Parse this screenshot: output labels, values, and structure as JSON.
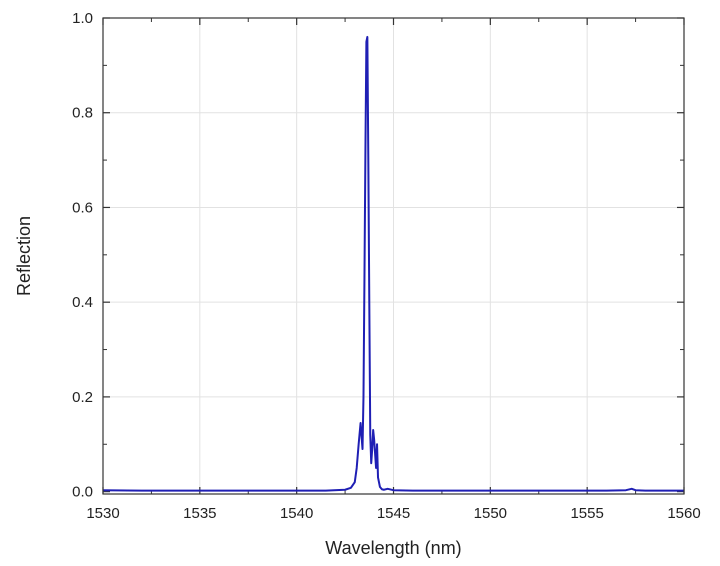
{
  "chart_data": {
    "type": "line",
    "title": "",
    "xlabel": "Wavelength (nm)",
    "ylabel": "Reflection",
    "xlim": [
      1530,
      1560
    ],
    "ylim": [
      -0.005,
      1.0
    ],
    "xticks": [
      1530,
      1535,
      1540,
      1545,
      1550,
      1555,
      1560
    ],
    "xtick_labels": [
      "1530",
      "1535",
      "1540",
      "1545",
      "1550",
      "1555",
      "1560"
    ],
    "yticks": [
      0.0,
      0.2,
      0.4,
      0.6,
      0.8,
      1.0
    ],
    "ytick_labels": [
      "0.0",
      "0.2",
      "0.4",
      "0.6",
      "0.8",
      "1.0"
    ],
    "grid": true,
    "legend": "none",
    "line_color": "#1f1fb4",
    "series": [
      {
        "values_x": [
          1530.0,
          1532.0,
          1534.0,
          1536.0,
          1538.0,
          1540.0,
          1541.5,
          1542.5,
          1542.8,
          1543.0,
          1543.1,
          1543.2,
          1543.3,
          1543.4,
          1543.45,
          1543.5,
          1543.55,
          1543.6,
          1543.65,
          1543.7,
          1543.75,
          1543.8,
          1543.85,
          1543.9,
          1543.95,
          1544.0,
          1544.05,
          1544.1,
          1544.15,
          1544.2,
          1544.3,
          1544.4,
          1544.5,
          1544.7,
          1545.0,
          1546.0,
          1548.0,
          1550.0,
          1552.0,
          1554.0,
          1556.0,
          1557.0,
          1557.3,
          1557.5,
          1558.0,
          1560.0
        ],
        "values_y": [
          0.003,
          0.002,
          0.002,
          0.002,
          0.002,
          0.002,
          0.002,
          0.004,
          0.008,
          0.02,
          0.05,
          0.1,
          0.145,
          0.09,
          0.2,
          0.45,
          0.72,
          0.95,
          0.96,
          0.7,
          0.4,
          0.12,
          0.06,
          0.09,
          0.13,
          0.11,
          0.08,
          0.05,
          0.1,
          0.03,
          0.01,
          0.005,
          0.004,
          0.006,
          0.003,
          0.002,
          0.002,
          0.002,
          0.002,
          0.002,
          0.002,
          0.003,
          0.006,
          0.003,
          0.002,
          0.002
        ]
      }
    ]
  }
}
